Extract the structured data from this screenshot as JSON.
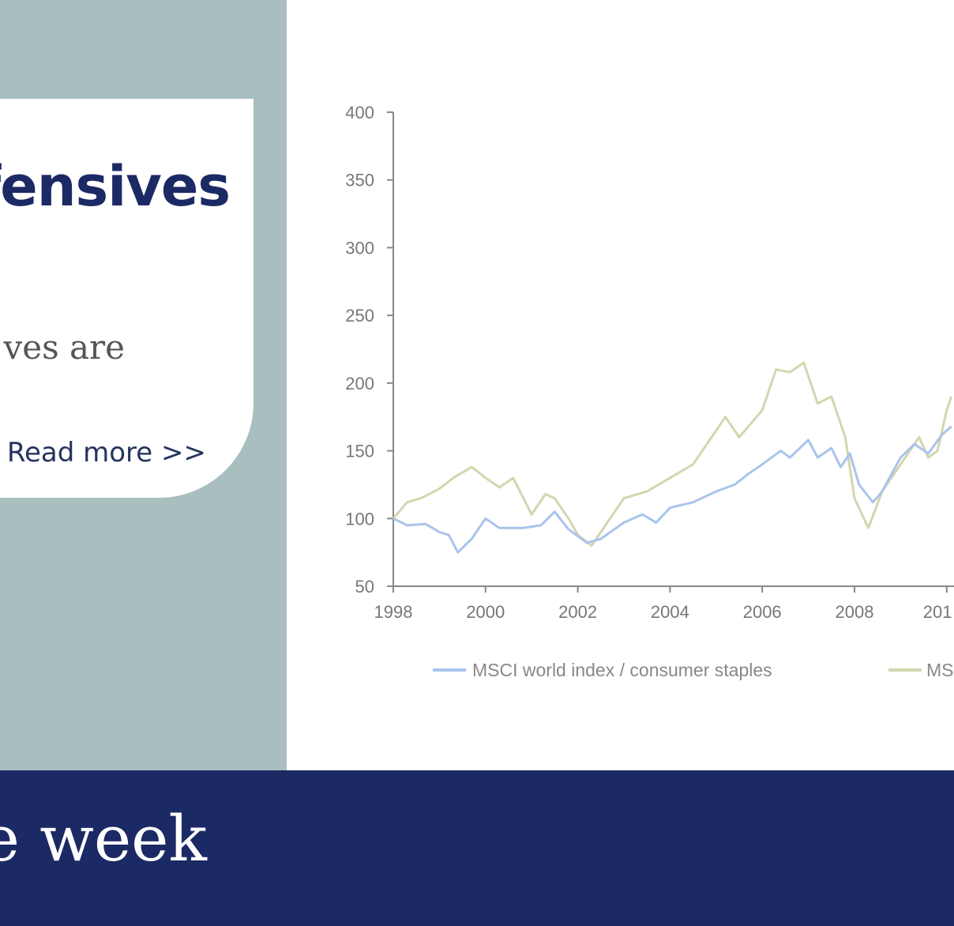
{
  "card": {
    "title": "fensives",
    "text": "ves are",
    "read_more": "Read more >>"
  },
  "footer": {
    "text": "e week"
  },
  "colors": {
    "panel": "#a9bebe",
    "navy": "#1b2a64",
    "series1": "#a9c4ec",
    "series2": "#d3d6ae"
  },
  "chart_data": {
    "type": "line",
    "title": "",
    "xlabel": "",
    "ylabel": "",
    "xlim": [
      1998,
      2010.1
    ],
    "ylim": [
      50,
      400
    ],
    "x_ticks": [
      "1998",
      "2000",
      "2002",
      "2004",
      "2006",
      "2008",
      "201"
    ],
    "y_ticks": [
      "400",
      "350",
      "300",
      "250",
      "200",
      "150",
      "100",
      "50"
    ],
    "grid": false,
    "legend_position": "bottom",
    "series": [
      {
        "name": "MSCI world index / consumer staples",
        "color": "#a9c4ec",
        "points": [
          [
            1998,
            100
          ],
          [
            1998.3,
            95
          ],
          [
            1998.7,
            96
          ],
          [
            1999,
            90
          ],
          [
            1999.2,
            88
          ],
          [
            1999.4,
            75
          ],
          [
            1999.7,
            85
          ],
          [
            2000,
            100
          ],
          [
            2000.3,
            93
          ],
          [
            2000.8,
            93
          ],
          [
            2001.2,
            95
          ],
          [
            2001.5,
            105
          ],
          [
            2001.8,
            92
          ],
          [
            2002.2,
            82
          ],
          [
            2002.5,
            85
          ],
          [
            2003,
            97
          ],
          [
            2003.4,
            103
          ],
          [
            2003.7,
            97
          ],
          [
            2004,
            108
          ],
          [
            2004.5,
            112
          ],
          [
            2005,
            120
          ],
          [
            2005.4,
            125
          ],
          [
            2005.7,
            133
          ],
          [
            2006,
            140
          ],
          [
            2006.4,
            150
          ],
          [
            2006.6,
            145
          ],
          [
            2007,
            158
          ],
          [
            2007.2,
            145
          ],
          [
            2007.5,
            152
          ],
          [
            2007.7,
            138
          ],
          [
            2007.9,
            148
          ],
          [
            2008.1,
            125
          ],
          [
            2008.4,
            112
          ],
          [
            2008.6,
            120
          ],
          [
            2009,
            145
          ],
          [
            2009.3,
            155
          ],
          [
            2009.6,
            148
          ],
          [
            2009.9,
            162
          ],
          [
            2010.1,
            168
          ]
        ]
      },
      {
        "name": "MS",
        "color": "#d3d6ae",
        "points": [
          [
            1998,
            100
          ],
          [
            1998.3,
            112
          ],
          [
            1998.6,
            115
          ],
          [
            1999,
            122
          ],
          [
            1999.3,
            130
          ],
          [
            1999.7,
            138
          ],
          [
            2000,
            130
          ],
          [
            2000.3,
            123
          ],
          [
            2000.6,
            130
          ],
          [
            2001,
            103
          ],
          [
            2001.3,
            118
          ],
          [
            2001.5,
            115
          ],
          [
            2001.8,
            100
          ],
          [
            2002,
            88
          ],
          [
            2002.3,
            80
          ],
          [
            2002.6,
            95
          ],
          [
            2003,
            115
          ],
          [
            2003.5,
            120
          ],
          [
            2004,
            130
          ],
          [
            2004.5,
            140
          ],
          [
            2005,
            165
          ],
          [
            2005.2,
            175
          ],
          [
            2005.5,
            160
          ],
          [
            2006,
            180
          ],
          [
            2006.3,
            210
          ],
          [
            2006.6,
            208
          ],
          [
            2006.9,
            215
          ],
          [
            2007.2,
            185
          ],
          [
            2007.5,
            190
          ],
          [
            2007.8,
            160
          ],
          [
            2008,
            115
          ],
          [
            2008.3,
            93
          ],
          [
            2008.6,
            120
          ],
          [
            2009,
            140
          ],
          [
            2009.4,
            160
          ],
          [
            2009.6,
            145
          ],
          [
            2009.8,
            150
          ],
          [
            2010,
            180
          ],
          [
            2010.1,
            190
          ]
        ]
      }
    ]
  }
}
